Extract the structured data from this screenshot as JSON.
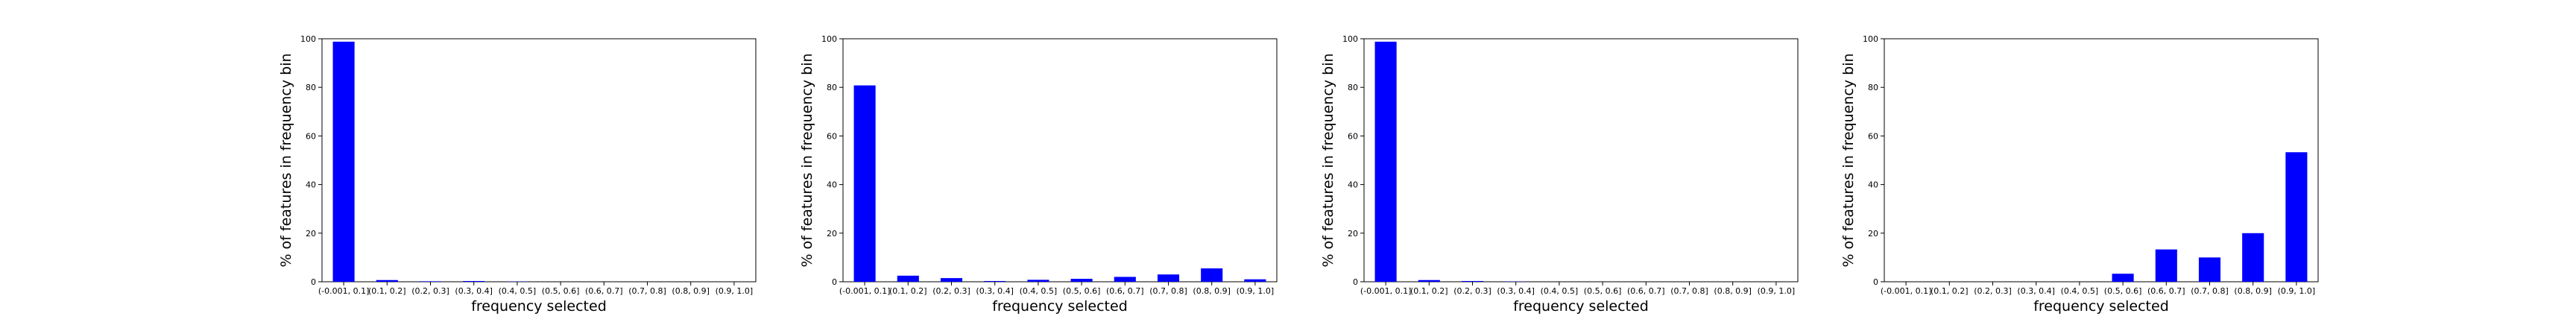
{
  "chart_data": [
    {
      "type": "bar",
      "categories": [
        "(-0.001, 0.1]",
        "(0.1, 0.2]",
        "(0.2, 0.3]",
        "(0.3, 0.4]",
        "(0.4, 0.5]",
        "(0.5, 0.6]",
        "(0.6, 0.7]",
        "(0.7, 0.8]",
        "(0.8, 0.9]",
        "(0.9, 1.0]"
      ],
      "values": [
        98.8,
        0.7,
        0.2,
        0.3,
        0.1,
        0,
        0,
        0,
        0,
        0
      ],
      "xlabel": "frequency selected",
      "ylabel": "% of features in frequency bin",
      "ylim": [
        0,
        100
      ],
      "yticks": [
        0,
        20,
        40,
        60,
        80,
        100
      ],
      "bar_color": "#0000ff",
      "grid": false
    },
    {
      "type": "bar",
      "categories": [
        "(-0.001, 0.1]",
        "(0.1, 0.2]",
        "(0.2, 0.3]",
        "(0.3, 0.4]",
        "(0.4, 0.5]",
        "(0.5, 0.6]",
        "(0.6, 0.7]",
        "(0.7, 0.8]",
        "(0.8, 0.9]",
        "(0.9, 1.0]"
      ],
      "values": [
        80.8,
        2.5,
        1.5,
        0.3,
        0.8,
        1.2,
        2.0,
        3.0,
        5.5,
        1.0
      ],
      "xlabel": "frequency selected",
      "ylabel": "% of features in frequency bin",
      "ylim": [
        0,
        100
      ],
      "yticks": [
        0,
        20,
        40,
        60,
        80,
        100
      ],
      "bar_color": "#0000ff",
      "grid": false
    },
    {
      "type": "bar",
      "categories": [
        "(-0.001, 0.1]",
        "(0.1, 0.2]",
        "(0.2, 0.3]",
        "(0.3, 0.4]",
        "(0.4, 0.5]",
        "(0.5, 0.6]",
        "(0.6, 0.7]",
        "(0.7, 0.8]",
        "(0.8, 0.9]",
        "(0.9, 1.0]"
      ],
      "values": [
        98.8,
        0.7,
        0.3,
        0.1,
        0,
        0,
        0,
        0,
        0,
        0
      ],
      "xlabel": "frequency selected",
      "ylabel": "% of features in frequency bin",
      "ylim": [
        0,
        100
      ],
      "yticks": [
        0,
        20,
        40,
        60,
        80,
        100
      ],
      "bar_color": "#0000ff",
      "grid": false
    },
    {
      "type": "bar",
      "categories": [
        "(-0.001, 0.1]",
        "(0.1, 0.2]",
        "(0.2, 0.3]",
        "(0.3, 0.4]",
        "(0.4, 0.5]",
        "(0.5, 0.6]",
        "(0.6, 0.7]",
        "(0.7, 0.8]",
        "(0.8, 0.9]",
        "(0.9, 1.0]"
      ],
      "values": [
        0,
        0,
        0,
        0,
        0,
        3.3,
        13.3,
        10.0,
        20.0,
        53.3
      ],
      "xlabel": "frequency selected",
      "ylabel": "% of features in frequency bin",
      "ylim": [
        0,
        100
      ],
      "yticks": [
        0,
        20,
        40,
        60,
        80,
        100
      ],
      "bar_color": "#0000ff",
      "grid": false
    }
  ]
}
